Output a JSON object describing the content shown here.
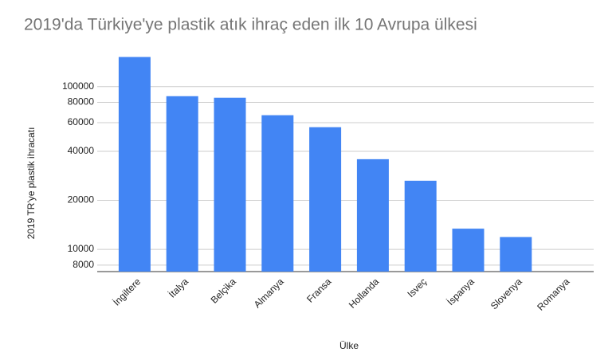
{
  "chart_data": {
    "type": "bar",
    "title": "2019'da Türkiye'ye plastik atık ihraç eden ilk 10 Avrupa ülkesi",
    "x_label": "Ülke",
    "y_label": "2019 TR'ye plastik ihracatı",
    "categories": [
      "İngiltere",
      "İtalya",
      "Belçika",
      "Almanya",
      "Fransa",
      "Hollanda",
      "Isveç",
      "İspanya",
      "Slovenya",
      "Romanya"
    ],
    "values": [
      152000,
      87300,
      85400,
      66700,
      56300,
      35800,
      26400,
      13400,
      11900,
      null
    ],
    "color": "#4285f4",
    "log_scale": true,
    "ylim": [
      7300,
      160000
    ],
    "yticks": [
      8000,
      10000,
      20000,
      40000,
      60000,
      80000,
      100000
    ],
    "grid": true
  }
}
